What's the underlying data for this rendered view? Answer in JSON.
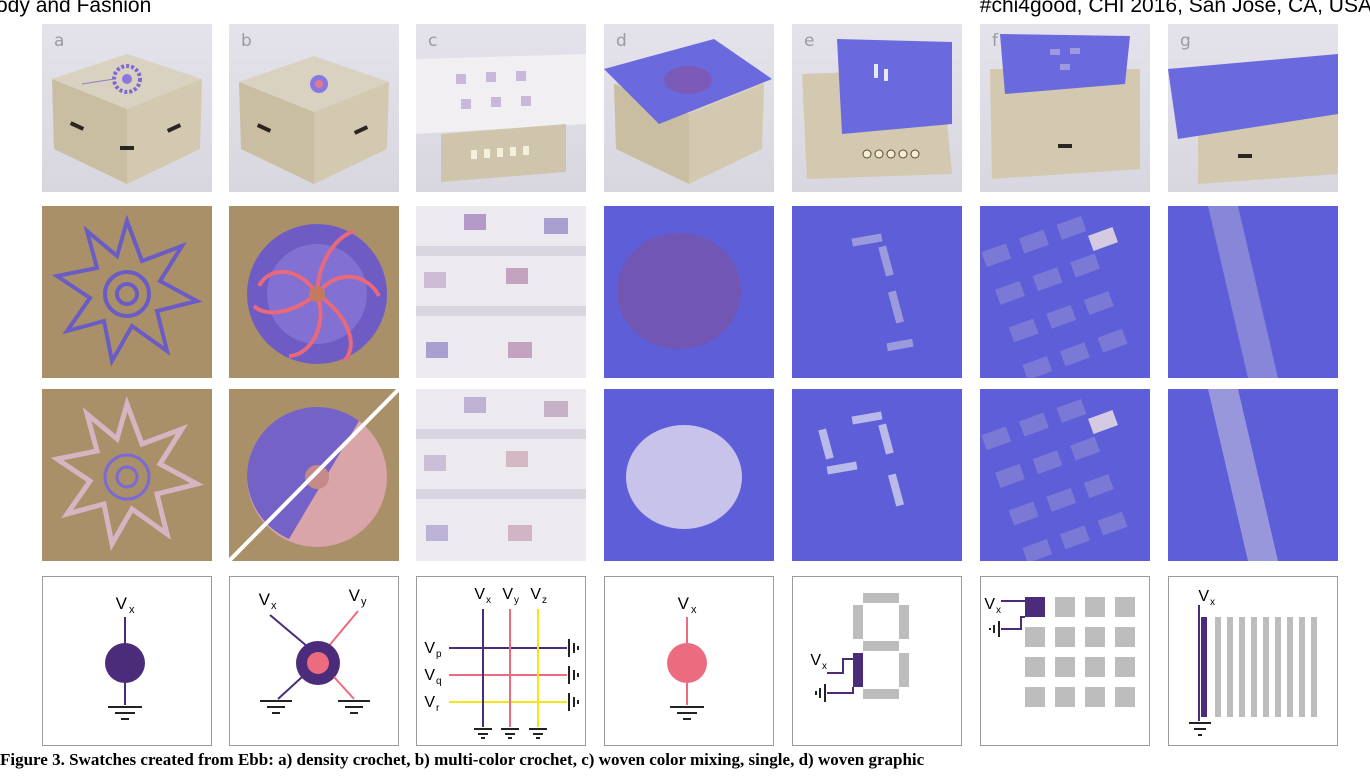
{
  "header": {
    "left": "ody and Fashion",
    "right": "#chi4good, CHI 2016, San Jose, CA, USA"
  },
  "panels": [
    {
      "letter": "a",
      "circuit": "single-dot"
    },
    {
      "letter": "b",
      "circuit": "two-input-dot"
    },
    {
      "letter": "c",
      "circuit": "grid-matrix"
    },
    {
      "letter": "d",
      "circuit": "single-dot"
    },
    {
      "letter": "e",
      "circuit": "seven-segment"
    },
    {
      "letter": "f",
      "circuit": "pixel-grid"
    },
    {
      "letter": "g",
      "circuit": "stripes"
    }
  ],
  "labels": {
    "vx": "V",
    "vx_sub": "x",
    "vy_sub": "y",
    "vz_sub": "z",
    "vp_sub": "p",
    "vq_sub": "q",
    "vr_sub": "r"
  },
  "colors": {
    "purple": "#4a2c7a",
    "pink": "#ec6b7e",
    "yellow": "#f2e51a",
    "gray": "#bdbdbd",
    "cloth_blue": "#6464dc",
    "cardboard": "#b09a70"
  },
  "caption": "Figure 3. Swatches created from Ebb: a) density crochet, b) multi-color crochet, c) woven color mixing, single, d) woven graphic"
}
